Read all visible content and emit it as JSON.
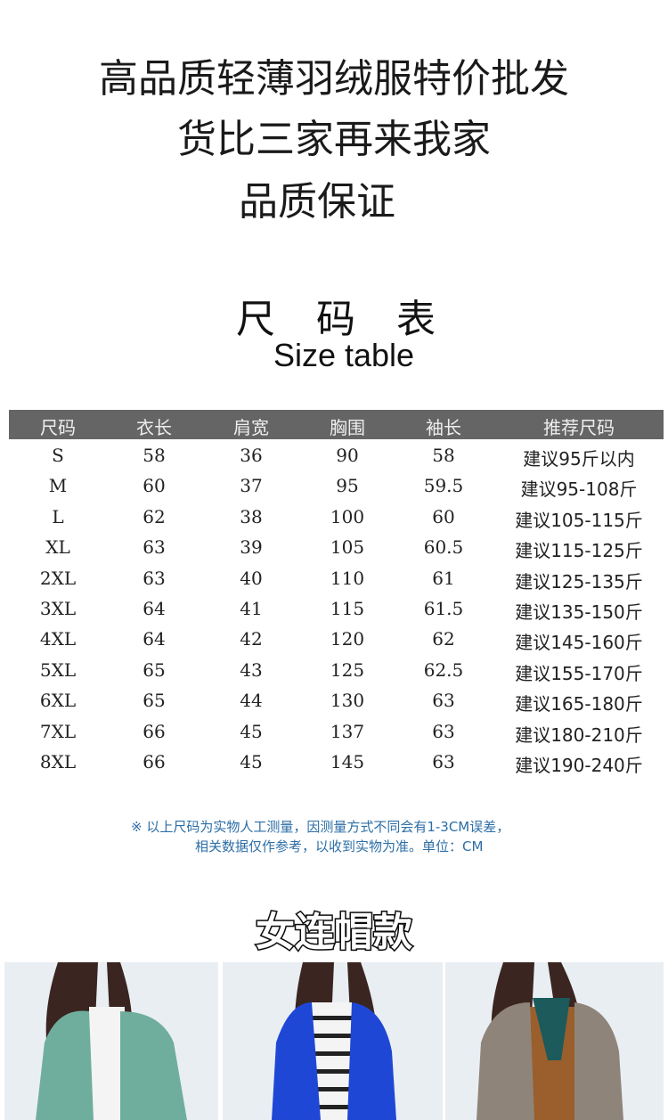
{
  "headlines": [
    "高品质轻薄羽绒服特价批发",
    "货比三家再来我家",
    "品质保证"
  ],
  "size_table": {
    "title_cn": "尺 码 表",
    "title_en": "Size table",
    "header_color": "#656565",
    "columns": [
      "尺码",
      "衣长",
      "肩宽",
      "胸围",
      "袖长",
      "推荐尺码"
    ],
    "rows": [
      [
        "S",
        "58",
        "36",
        "90",
        "58",
        "建议95斤以内"
      ],
      [
        "M",
        "60",
        "37",
        "95",
        "59.5",
        "建议95-108斤"
      ],
      [
        "L",
        "62",
        "38",
        "100",
        "60",
        "建议105-115斤"
      ],
      [
        "XL",
        "63",
        "39",
        "105",
        "60.5",
        "建议115-125斤"
      ],
      [
        "2XL",
        "63",
        "40",
        "110",
        "61",
        "建议125-135斤"
      ],
      [
        "3XL",
        "64",
        "41",
        "115",
        "61.5",
        "建议135-150斤"
      ],
      [
        "4XL",
        "64",
        "42",
        "120",
        "62",
        "建议145-160斤"
      ],
      [
        "5XL",
        "65",
        "43",
        "125",
        "62.5",
        "建议155-170斤"
      ],
      [
        "6XL",
        "65",
        "44",
        "130",
        "63",
        "建议165-180斤"
      ],
      [
        "7XL",
        "66",
        "45",
        "137",
        "63",
        "建议180-210斤"
      ],
      [
        "8XL",
        "66",
        "45",
        "145",
        "63",
        "建议190-240斤"
      ]
    ]
  },
  "note": {
    "line1": "※  以上尺码为实物人工测量，因测量方式不同会有1-3CM误差，",
    "line2": "相关数据仅作参考，以收到实物为准。单位：CM",
    "color": "#2d6ea6"
  },
  "style_title": "女连帽款",
  "photos": [
    {
      "jacket_color": "#6fae9d"
    },
    {
      "jacket_color": "#1f47d6"
    },
    {
      "jacket_color": "#8f8479"
    }
  ]
}
